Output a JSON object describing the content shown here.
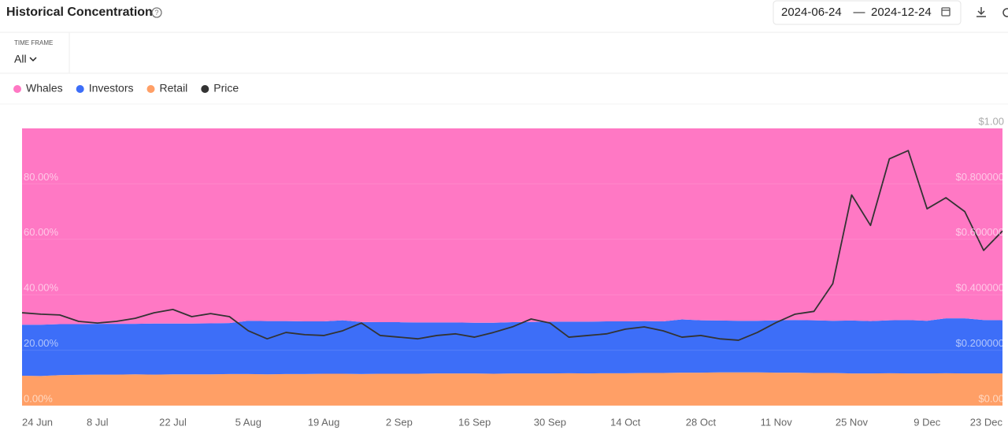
{
  "header": {
    "title": "Historical Concentration",
    "date_start": "2024-06-24",
    "date_separator": "—",
    "date_end": "2024-12-24"
  },
  "filters": {
    "time_frame_label": "TIME FRAME",
    "time_frame_value": "All"
  },
  "chart_data": {
    "type": "stacked-area",
    "categories": [
      "24 Jun",
      null,
      null,
      null,
      "8 Jul",
      null,
      null,
      null,
      "22 Jul",
      null,
      null,
      null,
      "5 Aug",
      null,
      null,
      null,
      "19 Aug",
      null,
      null,
      null,
      "2 Sep",
      null,
      null,
      null,
      "16 Sep",
      null,
      null,
      null,
      "30 Sep",
      null,
      null,
      null,
      "14 Oct",
      null,
      null,
      null,
      "28 Oct",
      null,
      null,
      null,
      "11 Nov",
      null,
      null,
      null,
      "25 Nov",
      null,
      null,
      null,
      "9 Dec",
      null,
      null,
      null,
      "23 Dec"
    ],
    "series": [
      {
        "name": "Whales",
        "color": "#ff78c4",
        "values": [
          70.8,
          70.8,
          70.6,
          70.6,
          70.5,
          70.5,
          70.5,
          70.4,
          70.4,
          70.4,
          70.3,
          70.2,
          69.4,
          69.5,
          69.5,
          69.6,
          69.6,
          69.2,
          69.8,
          69.9,
          69.9,
          70.0,
          70.0,
          70.0,
          70.1,
          70.1,
          69.9,
          69.8,
          69.7,
          69.7,
          69.7,
          69.6,
          69.6,
          69.5,
          69.6,
          68.9,
          69.2,
          69.3,
          69.4,
          69.4,
          69.2,
          69.1,
          69.2,
          69.4,
          69.3,
          69.5,
          69.2,
          69.1,
          69.4,
          68.5,
          68.5,
          69.1,
          69.2
        ]
      },
      {
        "name": "Investors",
        "color": "#3d6ef8",
        "values": [
          18.4,
          18.5,
          18.4,
          18.3,
          18.3,
          18.3,
          18.2,
          18.4,
          18.3,
          18.3,
          18.4,
          18.4,
          19.2,
          19.2,
          19.1,
          19.0,
          18.9,
          19.3,
          18.8,
          18.6,
          18.6,
          18.5,
          18.4,
          18.4,
          18.3,
          18.4,
          18.5,
          18.6,
          18.7,
          18.6,
          18.7,
          18.7,
          18.7,
          18.7,
          18.6,
          19.2,
          18.9,
          18.7,
          18.6,
          18.6,
          18.9,
          19.0,
          19.0,
          18.8,
          19.1,
          18.9,
          19.1,
          19.3,
          19.0,
          19.8,
          19.9,
          19.3,
          19.2
        ]
      },
      {
        "name": "Retail",
        "color": "#ff9f66",
        "values": [
          10.8,
          10.7,
          11.0,
          11.1,
          11.2,
          11.2,
          11.3,
          11.2,
          11.3,
          11.3,
          11.3,
          11.4,
          11.4,
          11.3,
          11.4,
          11.4,
          11.5,
          11.5,
          11.4,
          11.5,
          11.5,
          11.5,
          11.6,
          11.6,
          11.6,
          11.5,
          11.6,
          11.6,
          11.6,
          11.7,
          11.6,
          11.7,
          11.7,
          11.8,
          11.8,
          11.9,
          11.9,
          12.0,
          12.0,
          12.0,
          11.9,
          11.9,
          11.8,
          11.8,
          11.6,
          11.6,
          11.7,
          11.6,
          11.6,
          11.7,
          11.6,
          11.6,
          11.6
        ]
      },
      {
        "name": "Price",
        "color": "#333333",
        "axis": "y2",
        "values": [
          0.335,
          0.33,
          0.327,
          0.304,
          0.298,
          0.304,
          0.315,
          0.335,
          0.347,
          0.321,
          0.332,
          0.321,
          0.27,
          0.241,
          0.264,
          0.256,
          0.253,
          0.27,
          0.298,
          0.253,
          0.247,
          0.241,
          0.253,
          0.259,
          0.247,
          0.264,
          0.284,
          0.3125,
          0.298,
          0.247,
          0.253,
          0.259,
          0.276,
          0.284,
          0.27,
          0.247,
          0.253,
          0.241,
          0.236,
          0.264,
          0.3,
          0.33,
          0.34,
          0.44,
          0.76,
          0.65,
          0.89,
          0.92,
          0.71,
          0.75,
          0.7,
          0.56,
          0.63
        ]
      }
    ],
    "ylim": [
      0,
      100
    ],
    "yticks": [
      {
        "value": 0,
        "label": "0.00%"
      },
      {
        "value": 20,
        "label": "20.00%"
      },
      {
        "value": 40,
        "label": "40.00%"
      },
      {
        "value": 60,
        "label": "60.00%"
      },
      {
        "value": 80,
        "label": "80.00%"
      }
    ],
    "y2lim": [
      0,
      1
    ],
    "y2ticks": [
      {
        "value": 0,
        "label": "$0.00"
      },
      {
        "value": 0.2,
        "label": "$0.200000"
      },
      {
        "value": 0.4,
        "label": "$0.400000"
      },
      {
        "value": 0.6,
        "label": "$0.600000"
      },
      {
        "value": 0.8,
        "label": "$0.800000"
      },
      {
        "value": 1,
        "label": "$1.00"
      }
    ],
    "grid": true
  }
}
